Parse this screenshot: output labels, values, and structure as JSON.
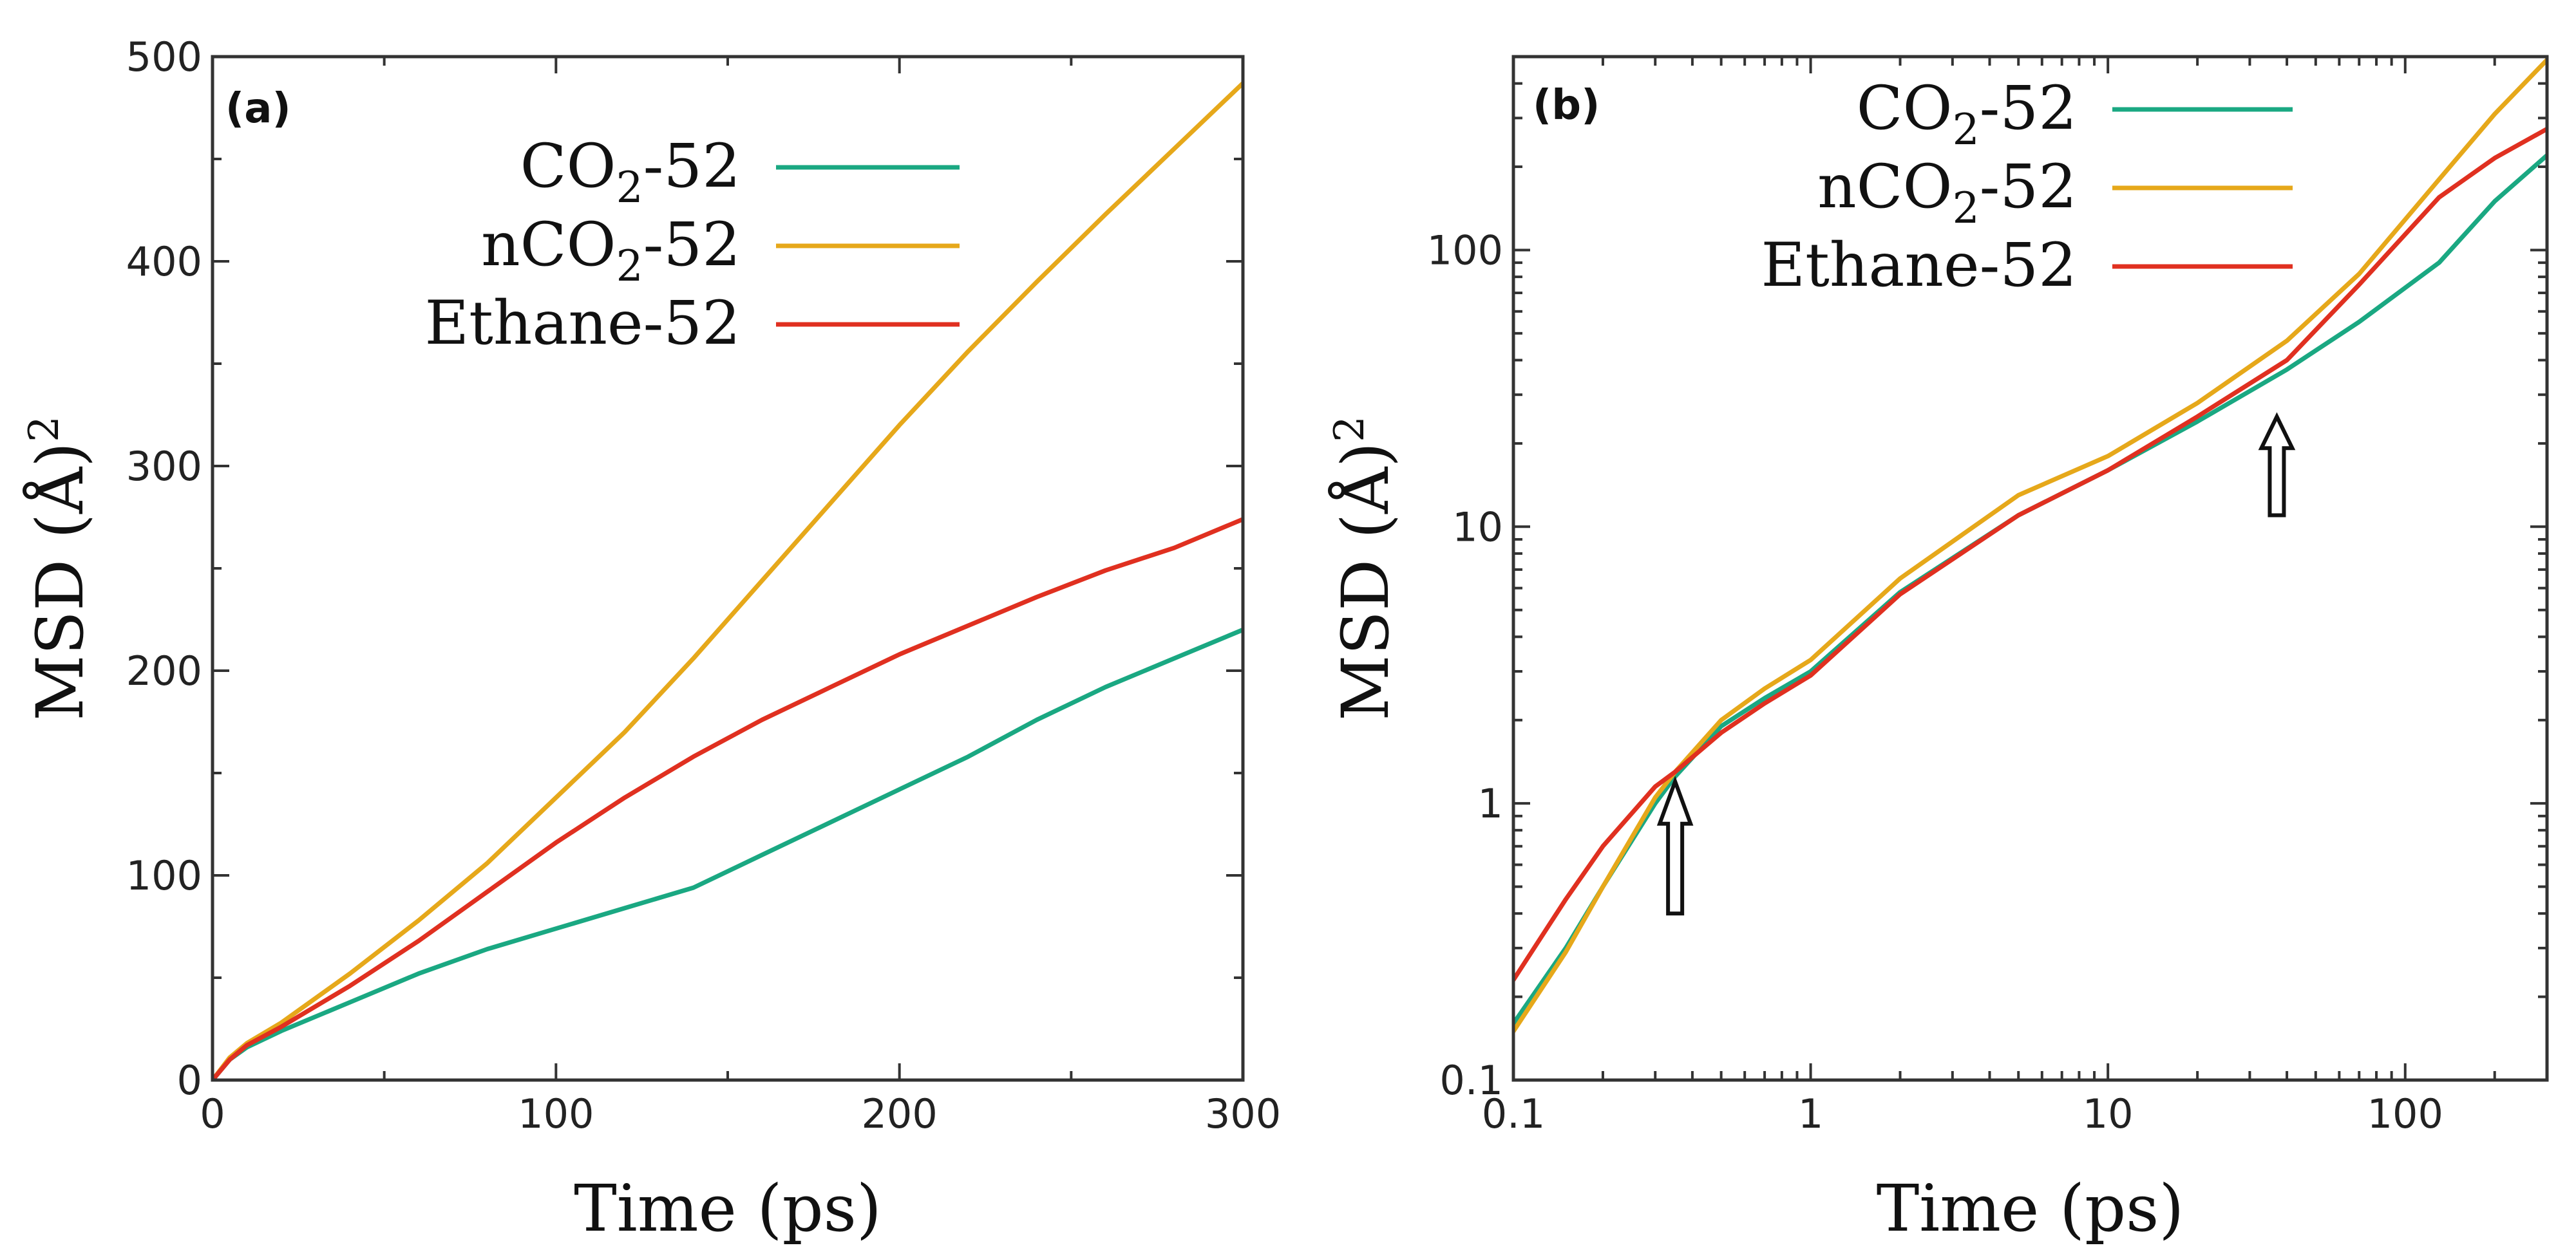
{
  "colors": {
    "co2": "#1aa882",
    "nco2": "#e6a81a",
    "ethane": "#e03020"
  },
  "chart_data": [
    {
      "type": "line",
      "panel_label": "(a)",
      "xlabel": "Time (ps)",
      "ylabel_main": "MSD (Å)",
      "ylabel_sup": "2",
      "xscale": "linear",
      "yscale": "linear",
      "xlim": [
        0,
        300
      ],
      "ylim": [
        0,
        500
      ],
      "xticks": [
        0,
        100,
        200,
        300
      ],
      "xtick_labels": [
        "0",
        "100",
        "200",
        "300"
      ],
      "yticks": [
        0,
        100,
        200,
        300,
        400,
        500
      ],
      "ytick_labels": [
        "0",
        "100",
        "200",
        "300",
        "400",
        "500"
      ],
      "legend_position": "top-right",
      "series": [
        {
          "key": "co2",
          "name_main": "CO",
          "name_sub": "2",
          "name_rest": "-52",
          "color": "#1aa882",
          "x": [
            0,
            5,
            10,
            20,
            40,
            60,
            80,
            100,
            120,
            140,
            160,
            180,
            200,
            220,
            240,
            260,
            280,
            300
          ],
          "y": [
            0,
            10,
            16,
            24,
            38,
            52,
            64,
            74,
            84,
            94,
            110,
            126,
            142,
            158,
            176,
            192,
            206,
            220
          ]
        },
        {
          "key": "nco2",
          "name_main": "nCO",
          "name_sub": "2",
          "name_rest": "-52",
          "color": "#e6a81a",
          "x": [
            0,
            5,
            10,
            20,
            40,
            60,
            80,
            100,
            120,
            140,
            160,
            180,
            200,
            220,
            240,
            260,
            280,
            300
          ],
          "y": [
            0,
            11,
            18,
            28,
            52,
            78,
            106,
            138,
            170,
            206,
            244,
            282,
            320,
            356,
            390,
            423,
            455,
            487
          ]
        },
        {
          "key": "ethane",
          "name_main": "Ethane-52",
          "name_sub": "",
          "name_rest": "",
          "color": "#e03020",
          "x": [
            0,
            5,
            10,
            20,
            40,
            60,
            80,
            100,
            120,
            140,
            160,
            180,
            200,
            220,
            240,
            260,
            280,
            300
          ],
          "y": [
            0,
            10,
            17,
            26,
            46,
            68,
            92,
            116,
            138,
            158,
            176,
            192,
            208,
            222,
            236,
            249,
            260,
            274
          ]
        }
      ]
    },
    {
      "type": "line",
      "panel_label": "(b)",
      "xlabel": "Time (ps)",
      "ylabel_main": "MSD (Å)",
      "ylabel_sup": "2",
      "xscale": "log",
      "yscale": "log",
      "xlim": [
        0.1,
        300
      ],
      "ylim": [
        0.1,
        500
      ],
      "xticks": [
        0.1,
        1,
        10,
        100
      ],
      "xtick_labels": [
        "0.1",
        "1",
        "10",
        "100"
      ],
      "yticks": [
        0.1,
        1,
        10,
        100
      ],
      "ytick_labels": [
        "0.1",
        "1",
        "10",
        "100"
      ],
      "legend_position": "top-right",
      "annotations": [
        {
          "type": "arrow",
          "direction": "up",
          "x": 0.35,
          "y_tip": 1.2,
          "y_tail": 0.4
        },
        {
          "type": "arrow",
          "direction": "up",
          "x": 37,
          "y_tip": 25,
          "y_tail": 11
        }
      ],
      "series": [
        {
          "key": "co2",
          "name_main": "CO",
          "name_sub": "2",
          "name_rest": "-52",
          "color": "#1aa882",
          "x": [
            0.1,
            0.15,
            0.2,
            0.3,
            0.35,
            0.5,
            0.7,
            1,
            2,
            5,
            10,
            20,
            40,
            70,
            130,
            200,
            300
          ],
          "y": [
            0.16,
            0.3,
            0.5,
            1.0,
            1.25,
            1.9,
            2.4,
            3.0,
            5.8,
            11,
            16,
            24,
            37,
            55,
            90,
            150,
            220
          ]
        },
        {
          "key": "nco2",
          "name_main": "nCO",
          "name_sub": "2",
          "name_rest": "-52",
          "color": "#e6a81a",
          "x": [
            0.1,
            0.15,
            0.2,
            0.3,
            0.35,
            0.5,
            0.7,
            1,
            2,
            5,
            10,
            20,
            40,
            70,
            130,
            200,
            300
          ],
          "y": [
            0.15,
            0.29,
            0.5,
            1.05,
            1.3,
            2.0,
            2.6,
            3.3,
            6.5,
            13,
            18,
            28,
            47,
            82,
            180,
            310,
            487
          ]
        },
        {
          "key": "ethane",
          "name_main": "Ethane-52",
          "name_sub": "",
          "name_rest": "",
          "color": "#e03020",
          "x": [
            0.1,
            0.15,
            0.2,
            0.3,
            0.35,
            0.5,
            0.7,
            1,
            2,
            5,
            10,
            20,
            40,
            70,
            130,
            200,
            300
          ],
          "y": [
            0.23,
            0.45,
            0.7,
            1.15,
            1.3,
            1.8,
            2.3,
            2.9,
            5.7,
            11,
            16,
            25,
            40,
            75,
            155,
            215,
            274
          ]
        }
      ]
    }
  ]
}
